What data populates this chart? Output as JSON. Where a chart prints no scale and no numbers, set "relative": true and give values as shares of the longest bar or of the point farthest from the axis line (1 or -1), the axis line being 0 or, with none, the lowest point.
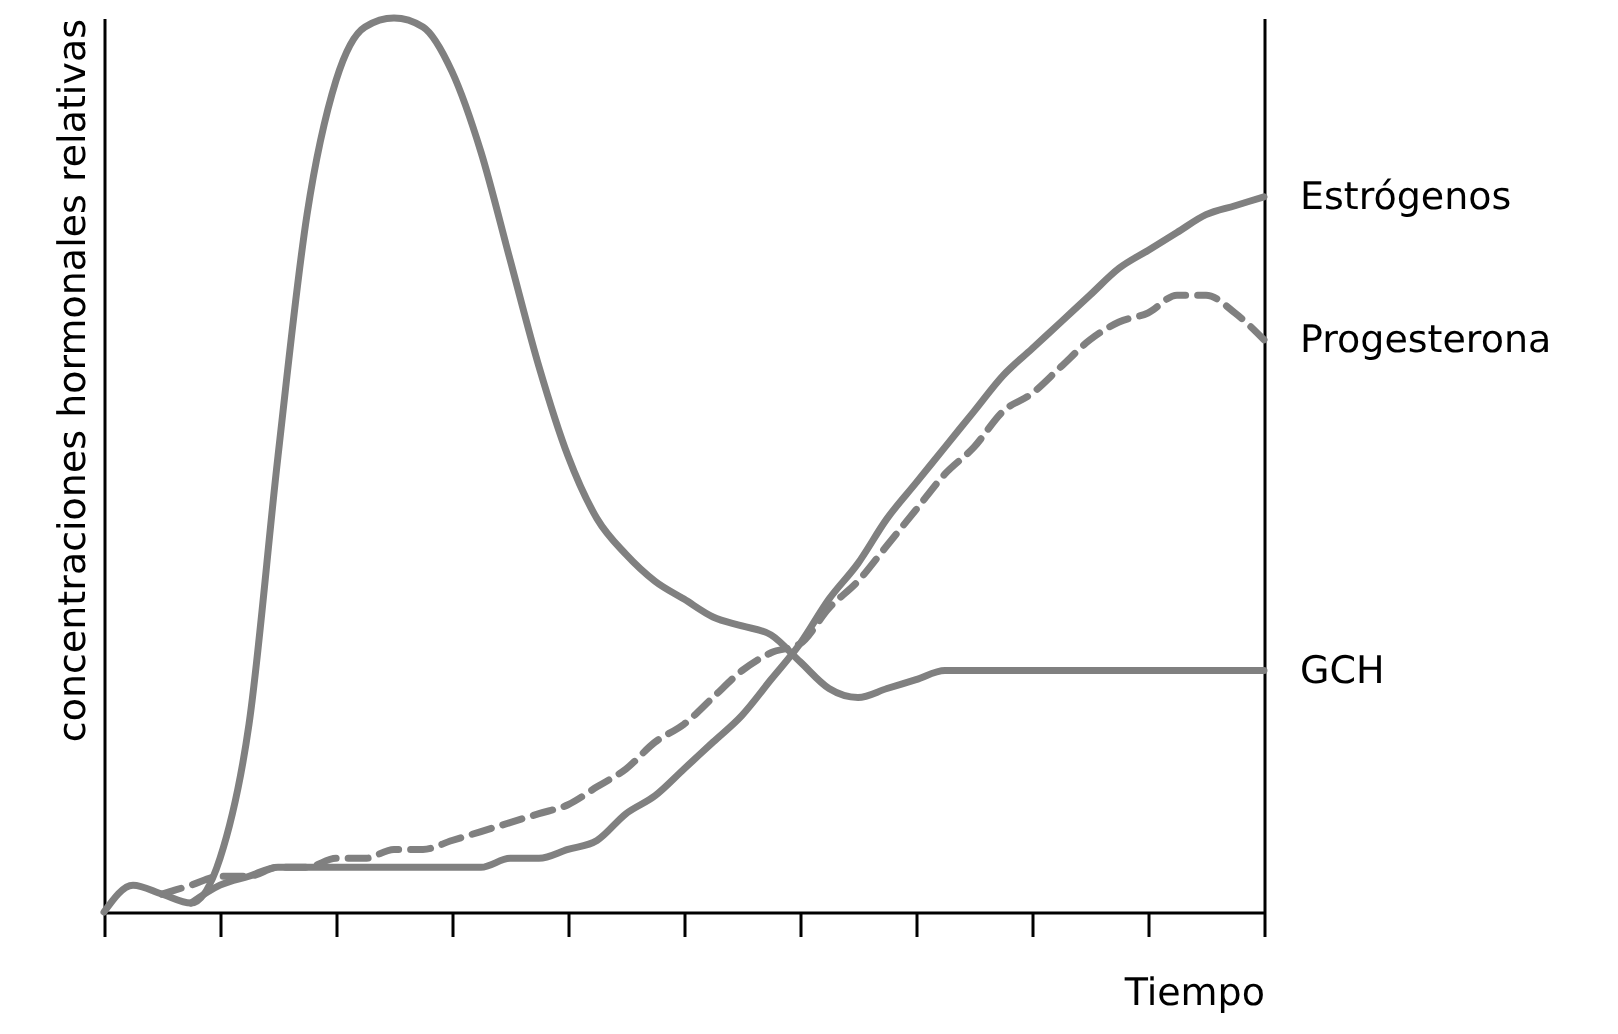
{
  "chart_data": {
    "type": "line",
    "relative": true,
    "xlabel": "Tiempo",
    "ylabel": "concentraciones hormonales relativas",
    "marker": "none",
    "legend": "right",
    "categories": [
      null,
      null,
      null,
      null,
      null,
      null,
      null,
      null,
      null,
      null,
      null,
      null,
      null,
      null,
      null,
      null,
      null,
      null,
      null,
      null,
      null,
      null,
      null,
      null,
      null,
      null,
      null,
      null,
      null,
      null,
      null,
      null,
      null,
      null,
      null,
      null,
      null,
      null,
      null,
      null,
      null
    ],
    "series": [
      {
        "name": "Estrógenos",
        "color": "#808080",
        "line_style": "solid",
        "values": [
          null,
          null,
          null,
          0.01,
          0.03,
          0.04,
          0.05,
          0.05,
          0.05,
          0.05,
          0.05,
          0.05,
          0.05,
          0.05,
          0.06,
          0.06,
          0.07,
          0.08,
          0.11,
          0.13,
          0.16,
          0.19,
          0.22,
          0.26,
          0.3,
          0.35,
          0.39,
          0.44,
          0.48,
          0.52,
          0.56,
          0.6,
          0.63,
          0.66,
          0.69,
          0.72,
          0.74,
          0.76,
          0.78,
          0.79,
          0.8
        ]
      },
      {
        "name": "Progesterona",
        "color": "#808080",
        "line_style": "dashed",
        "values": [
          null,
          null,
          0.02,
          0.03,
          0.04,
          0.04,
          0.05,
          0.05,
          0.06,
          0.06,
          0.07,
          0.07,
          0.08,
          0.09,
          0.1,
          0.11,
          0.12,
          0.14,
          0.16,
          0.19,
          0.21,
          0.24,
          0.27,
          0.29,
          0.3,
          0.34,
          0.37,
          0.41,
          0.45,
          0.49,
          0.52,
          0.56,
          0.58,
          0.61,
          0.64,
          0.66,
          0.67,
          0.69,
          0.69,
          0.67,
          0.64
        ]
      },
      {
        "name": "GCH",
        "color": "#808080",
        "line_style": "solid",
        "values": [
          0,
          0.03,
          0.02,
          0.01,
          0.06,
          0.21,
          0.51,
          0.78,
          0.93,
          0.99,
          1,
          0.99,
          0.94,
          0.85,
          0.73,
          0.61,
          0.51,
          0.44,
          0.4,
          0.37,
          0.35,
          0.33,
          0.32,
          0.31,
          0.28,
          0.25,
          0.24,
          0.25,
          0.26,
          0.27,
          0.27,
          0.27,
          0.27,
          0.27,
          0.27,
          0.27,
          0.27,
          0.27,
          0.27,
          0.27,
          0.27
        ]
      }
    ]
  }
}
